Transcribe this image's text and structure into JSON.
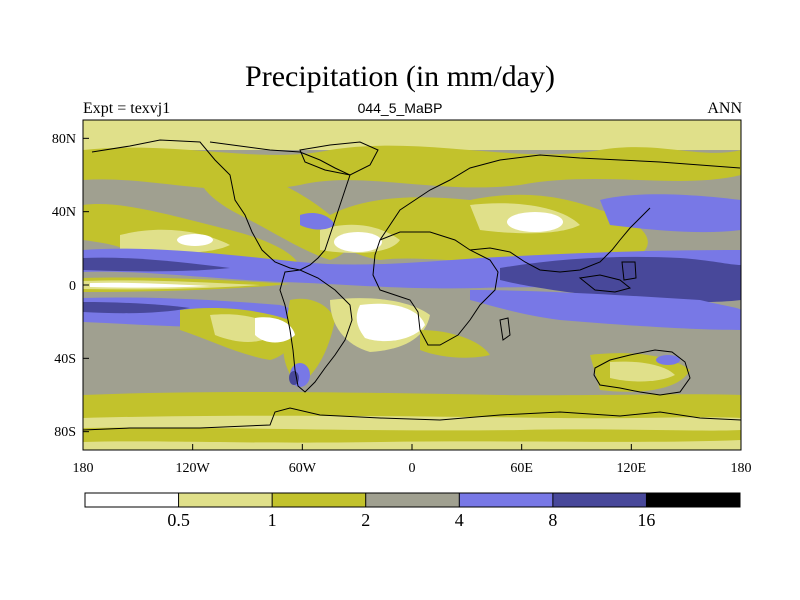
{
  "title": "Precipitation (in mm/day)",
  "subtitle_left": "Expt = texvj1",
  "subtitle_center": "044_5_MaBP",
  "subtitle_right": "ANN",
  "colors": {
    "c0": "#ffffff",
    "c1": "#e0e08a",
    "c2": "#c2c22c",
    "c3": "#a0a090",
    "c4": "#7878e6",
    "c5": "#48489a",
    "c6": "#000000",
    "coast": "#000000"
  },
  "map": {
    "lon_range": [
      -180,
      180
    ],
    "lat_range": [
      -90,
      90
    ],
    "x_ticks": [
      {
        "value": -180,
        "label": "180"
      },
      {
        "value": -120,
        "label": "120W"
      },
      {
        "value": -60,
        "label": "60W"
      },
      {
        "value": 0,
        "label": "0"
      },
      {
        "value": 60,
        "label": "60E"
      },
      {
        "value": 120,
        "label": "120E"
      },
      {
        "value": 180,
        "label": "180"
      }
    ],
    "y_ticks": [
      {
        "value": 80,
        "label": "80N"
      },
      {
        "value": 40,
        "label": "40N"
      },
      {
        "value": 0,
        "label": "0"
      },
      {
        "value": -40,
        "label": "40S"
      },
      {
        "value": -80,
        "label": "80S"
      }
    ]
  },
  "colorbar": {
    "labels": [
      "0.5",
      "1",
      "2",
      "4",
      "8",
      "16"
    ],
    "levels": [
      0.5,
      1,
      2,
      4,
      8,
      16
    ]
  }
}
